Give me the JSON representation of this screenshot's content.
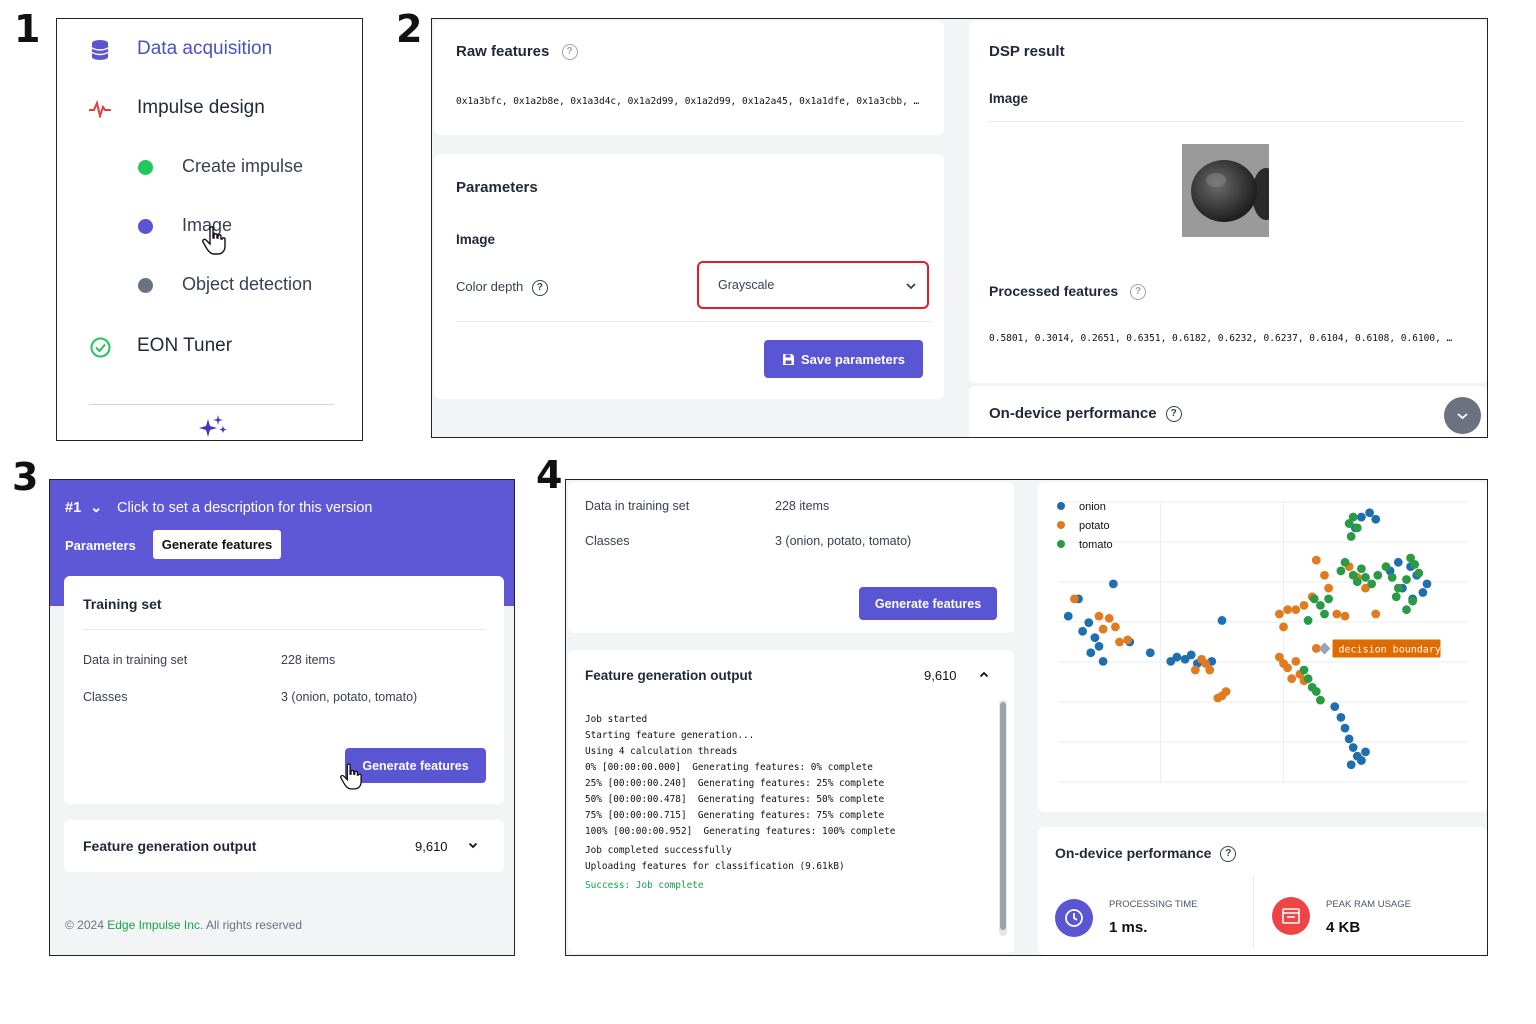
{
  "panel_numbers": [
    "1",
    "2",
    "3",
    "4"
  ],
  "colors": {
    "accent": "#5a55d2",
    "onion": "#1f6fb0",
    "potato": "#e07b22",
    "tomato": "#2b9a45",
    "success": "#16a34a",
    "danger": "#ef4444"
  },
  "sidebar": {
    "items": [
      {
        "label": "Data acquisition",
        "icon": "database-icon"
      },
      {
        "label": "Impulse design",
        "icon": "pulse-icon"
      },
      {
        "label": "Create impulse",
        "icon": "green-dot-icon"
      },
      {
        "label": "Image",
        "icon": "blue-dot-icon"
      },
      {
        "label": "Object detection",
        "icon": "gray-dot-icon"
      },
      {
        "label": "EON Tuner",
        "icon": "check-circle-icon"
      }
    ],
    "footer_icon": "sparkle-icon"
  },
  "dsp": {
    "raw_features_title": "Raw features",
    "raw_features_values": "0x1a3bfc, 0x1a2b8e, 0x1a3d4c, 0x1a2d99, 0x1a2d99, 0x1a2a45, 0x1a1dfe, 0x1a3cbb, …",
    "parameters_title": "Parameters",
    "image_heading": "Image",
    "color_depth_label": "Color depth",
    "color_depth_value": "Grayscale",
    "save_button": "Save parameters",
    "dsp_result_title": "DSP result",
    "dsp_image_heading": "Image",
    "processed_features_title": "Processed features",
    "processed_features_values": "0.5801, 0.3014, 0.2651, 0.6351, 0.6182, 0.6232, 0.6237, 0.6104, 0.6108, 0.6100, …",
    "on_device_title": "On-device performance"
  },
  "generate": {
    "version_number": "#1",
    "version_chevron": "⌄",
    "version_description": "Click to set a description for this version",
    "tab_parameters": "Parameters",
    "tab_generate": "Generate features",
    "training_set_title": "Training set",
    "data_in_training_label": "Data in training set",
    "data_in_training_value": "228 items",
    "classes_label": "Classes",
    "classes_value": "3 (onion, potato, tomato)",
    "generate_button": "Generate features",
    "output_title": "Feature generation output",
    "output_count": "9,610",
    "footer_prefix": "© 2024 ",
    "footer_link": "Edge Impulse Inc.",
    "footer_suffix": " All rights reserved"
  },
  "results": {
    "data_in_training_label": "Data in training set",
    "data_in_training_value": "228 items",
    "classes_label": "Classes",
    "classes_value": "3 (onion, potato, tomato)",
    "generate_button": "Generate features",
    "output_title": "Feature generation output",
    "output_count": "9,610",
    "log_lines": [
      "Job started",
      "Starting feature generation...",
      "Using 4 calculation threads",
      "0% [00:00:00.000]  Generating features: 0% complete",
      "25% [00:00:00.240]  Generating features: 25% complete",
      "50% [00:00:00.478]  Generating features: 50% complete",
      "75% [00:00:00.715]  Generating features: 75% complete",
      "100% [00:00:00.952]  Generating features: 100% complete",
      "Job completed successfully",
      "Uploading features for classification (9.61kB)"
    ],
    "log_success": "Success: Job complete",
    "on_device_title": "On-device performance",
    "processing_time_label": "PROCESSING TIME",
    "processing_time_value": "1 ms.",
    "peak_ram_label": "PEAK RAM USAGE",
    "peak_ram_value": "4 KB"
  },
  "chart_data": {
    "type": "scatter",
    "legend": [
      "onion",
      "potato",
      "tomato"
    ],
    "legend_position": "top-left",
    "annotation": "decision boundary",
    "grid": true,
    "series": [
      {
        "name": "onion",
        "color": "#1f6fb0",
        "points": [
          [
            -0.9,
            0.55
          ],
          [
            -0.95,
            0.47
          ],
          [
            -0.85,
            0.44
          ],
          [
            -0.88,
            0.4
          ],
          [
            -0.82,
            0.37
          ],
          [
            -0.8,
            0.33
          ],
          [
            -0.84,
            0.3
          ],
          [
            -0.78,
            0.26
          ],
          [
            -0.73,
            0.62
          ],
          [
            -0.65,
            0.35
          ],
          [
            -0.55,
            0.3
          ],
          [
            -0.45,
            0.26
          ],
          [
            -0.42,
            0.28
          ],
          [
            -0.38,
            0.27
          ],
          [
            -0.35,
            0.29
          ],
          [
            -0.32,
            0.25
          ],
          [
            -0.2,
            0.45
          ],
          [
            -0.25,
            0.26
          ],
          [
            0.35,
            0.05
          ],
          [
            0.38,
            0.0
          ],
          [
            0.4,
            -0.05
          ],
          [
            0.42,
            -0.1
          ],
          [
            0.44,
            -0.14
          ],
          [
            0.46,
            -0.18
          ],
          [
            0.48,
            -0.2
          ],
          [
            0.43,
            -0.22
          ],
          [
            0.5,
            -0.16
          ],
          [
            0.45,
            0.88
          ],
          [
            0.48,
            0.93
          ],
          [
            0.52,
            0.95
          ],
          [
            0.55,
            0.92
          ],
          [
            0.62,
            0.68
          ],
          [
            0.66,
            0.72
          ],
          [
            0.72,
            0.7
          ],
          [
            0.75,
            0.66
          ],
          [
            0.68,
            0.6
          ],
          [
            0.78,
            0.58
          ],
          [
            0.73,
            0.55
          ],
          [
            0.8,
            0.62
          ]
        ]
      },
      {
        "name": "potato",
        "color": "#e07b22",
        "points": [
          [
            -0.92,
            0.55
          ],
          [
            -0.8,
            0.47
          ],
          [
            -0.75,
            0.46
          ],
          [
            -0.78,
            0.41
          ],
          [
            -0.72,
            0.42
          ],
          [
            -0.7,
            0.35
          ],
          [
            -0.66,
            0.36
          ],
          [
            -0.33,
            0.22
          ],
          [
            -0.28,
            0.25
          ],
          [
            -0.26,
            0.22
          ],
          [
            -0.3,
            0.27
          ],
          [
            -0.2,
            0.1
          ],
          [
            -0.18,
            0.12
          ],
          [
            -0.22,
            0.09
          ],
          [
            0.08,
            0.48
          ],
          [
            0.12,
            0.5
          ],
          [
            0.1,
            0.42
          ],
          [
            0.16,
            0.5
          ],
          [
            0.2,
            0.52
          ],
          [
            0.24,
            0.56
          ],
          [
            0.26,
            0.73
          ],
          [
            0.3,
            0.66
          ],
          [
            0.32,
            0.6
          ],
          [
            0.36,
            0.48
          ],
          [
            0.4,
            0.47
          ],
          [
            0.42,
            0.7
          ],
          [
            0.46,
            0.65
          ],
          [
            0.5,
            0.6
          ],
          [
            0.55,
            0.48
          ],
          [
            0.08,
            0.28
          ],
          [
            0.1,
            0.25
          ],
          [
            0.12,
            0.23
          ],
          [
            0.16,
            0.26
          ],
          [
            0.18,
            0.2
          ],
          [
            0.14,
            0.18
          ],
          [
            0.2,
            0.17
          ],
          [
            0.26,
            0.32
          ]
        ]
      },
      {
        "name": "tomato",
        "color": "#2b9a45",
        "points": [
          [
            0.42,
            0.9
          ],
          [
            0.44,
            0.93
          ],
          [
            0.46,
            0.88
          ],
          [
            0.43,
            0.84
          ],
          [
            0.38,
            0.68
          ],
          [
            0.4,
            0.72
          ],
          [
            0.44,
            0.66
          ],
          [
            0.46,
            0.63
          ],
          [
            0.48,
            0.69
          ],
          [
            0.5,
            0.65
          ],
          [
            0.53,
            0.62
          ],
          [
            0.56,
            0.66
          ],
          [
            0.6,
            0.7
          ],
          [
            0.63,
            0.65
          ],
          [
            0.66,
            0.6
          ],
          [
            0.7,
            0.64
          ],
          [
            0.72,
            0.74
          ],
          [
            0.74,
            0.71
          ],
          [
            0.76,
            0.67
          ],
          [
            0.65,
            0.56
          ],
          [
            0.7,
            0.5
          ],
          [
            0.73,
            0.54
          ],
          [
            0.25,
            0.55
          ],
          [
            0.28,
            0.52
          ],
          [
            0.3,
            0.48
          ],
          [
            0.22,
            0.45
          ],
          [
            0.32,
            0.55
          ],
          [
            0.2,
            0.22
          ],
          [
            0.22,
            0.18
          ],
          [
            0.24,
            0.14
          ],
          [
            0.26,
            0.12
          ],
          [
            0.28,
            0.08
          ]
        ]
      }
    ]
  }
}
